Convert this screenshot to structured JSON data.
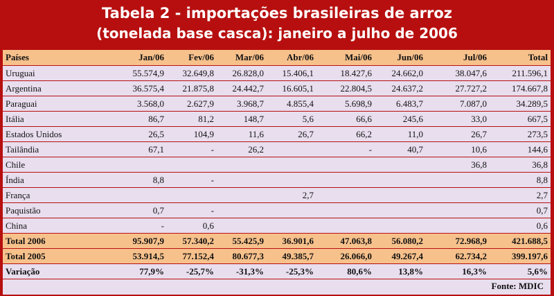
{
  "title": {
    "line1": "Tabela 2 - importações brasileiras de arroz",
    "line2": "(tonelada base casca): janeiro a julho de 2006"
  },
  "columns": [
    "Países",
    "Jan/06",
    "Fev/06",
    "Mar/06",
    "Abr/06",
    "Mai/06",
    "Jun/06",
    "Jul/06",
    "Total"
  ],
  "rows": [
    [
      "Uruguai",
      "55.574,9",
      "32.649,8",
      "26.828,0",
      "15.406,1",
      "18.427,6",
      "24.662,0",
      "38.047,6",
      "211.596,1"
    ],
    [
      "Argentina",
      "36.575,4",
      "21.875,8",
      "24.442,7",
      "16.605,1",
      "22.804,5",
      "24.637,2",
      "27.727,2",
      "174.667,8"
    ],
    [
      "Paraguai",
      "3.568,0",
      "2.627,9",
      "3.968,7",
      "4.855,4",
      "5.698,9",
      "6.483,7",
      "7.087,0",
      "34.289,5"
    ],
    [
      "Itália",
      "86,7",
      "81,2",
      "148,7",
      "5,6",
      "66,6",
      "245,6",
      "33,0",
      "667,5"
    ],
    [
      "Estados Unidos",
      "26,5",
      "104,9",
      "11,6",
      "26,7",
      "66,2",
      "11,0",
      "26,7",
      "273,5"
    ],
    [
      "Tailândia",
      "67,1",
      "-",
      "26,2",
      "",
      "-",
      "40,7",
      "10,6",
      "144,6"
    ],
    [
      "Chile",
      "",
      "",
      "",
      "",
      "",
      "",
      "36,8",
      "36,8"
    ],
    [
      "Índia",
      "8,8",
      "-",
      "",
      "",
      "",
      "",
      "",
      "8,8"
    ],
    [
      "França",
      "",
      "",
      "",
      "2,7",
      "",
      "",
      "",
      "2,7"
    ],
    [
      "Paquistão",
      "0,7",
      "-",
      "",
      "",
      "",
      "",
      "",
      "0,7"
    ],
    [
      "China",
      "-",
      "0,6",
      "",
      "",
      "",
      "",
      "",
      "0,6"
    ]
  ],
  "totals": [
    [
      "Total 2006",
      "95.907,9",
      "57.340,2",
      "55.425,9",
      "36.901,6",
      "47.063,8",
      "56.080,2",
      "72.968,9",
      "421.688,5"
    ],
    [
      "Total 2005",
      "53.914,5",
      "77.152,4",
      "80.677,3",
      "49.385,7",
      "26.066,0",
      "49.267,4",
      "62.734,2",
      "399.197,6"
    ]
  ],
  "variation": [
    "Variação",
    "77,9%",
    "-25,7%",
    "-31,3%",
    "-25,3%",
    "80,6%",
    "13,8%",
    "16,3%",
    "5,6%"
  ],
  "source": "Fonte: MDIC"
}
